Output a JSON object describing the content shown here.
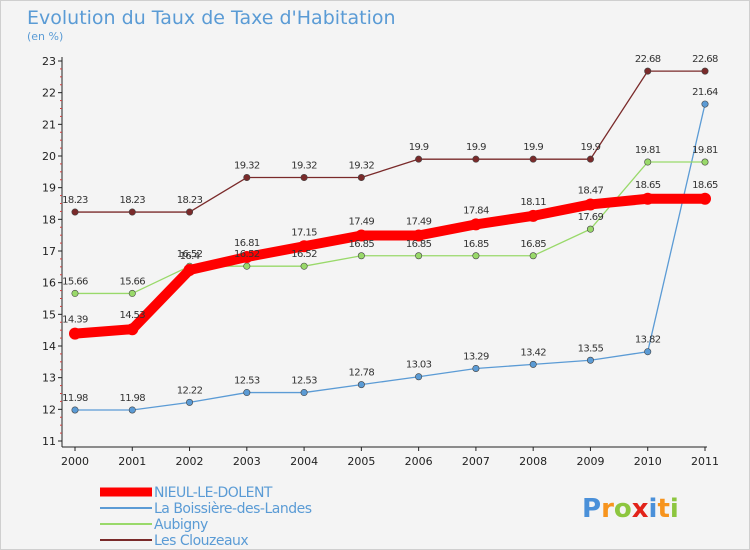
{
  "chart_data": {
    "type": "line",
    "title": "Evolution du Taux de Taxe d'Habitation",
    "subtitle": "(en %)",
    "x": [
      "2000",
      "2001",
      "2002",
      "2003",
      "2004",
      "2005",
      "2006",
      "2007",
      "2008",
      "2009",
      "2010",
      "2011"
    ],
    "ylim": [
      11,
      23
    ],
    "yticks": [
      "11",
      "12",
      "13",
      "14",
      "15",
      "16",
      "17",
      "18",
      "19",
      "20",
      "21",
      "22",
      "23"
    ],
    "grid": false,
    "legend_position": "bottom-left",
    "series": [
      {
        "name": "NIEUL-LE-DOLENT",
        "color": "#ff0000",
        "emphasis": true,
        "values": [
          14.39,
          14.53,
          16.4,
          16.81,
          17.15,
          17.49,
          17.49,
          17.84,
          18.11,
          18.47,
          18.65,
          18.65
        ],
        "labels": [
          "14.39",
          "14.53",
          "16.4",
          "16.81",
          "17.15",
          "17.49",
          "17.49",
          "17.84",
          "18.11",
          "18.47",
          "18.65",
          "18.65"
        ]
      },
      {
        "name": "La Boissière-des-Landes",
        "color": "#5b9bd5",
        "values": [
          11.98,
          11.98,
          12.22,
          12.53,
          12.53,
          12.78,
          13.03,
          13.29,
          13.42,
          13.55,
          13.82,
          21.64
        ],
        "labels": [
          "11.98",
          "11.98",
          "12.22",
          "12.53",
          "12.53",
          "12.78",
          "13.03",
          "13.29",
          "13.42",
          "13.55",
          "13.82",
          "21.64"
        ]
      },
      {
        "name": "Aubigny",
        "color": "#99d96a",
        "values": [
          15.66,
          15.66,
          16.52,
          16.52,
          16.52,
          16.85,
          16.85,
          16.85,
          16.85,
          17.69,
          19.81,
          19.81
        ],
        "labels": [
          "15.66",
          "15.66",
          "16.52",
          "16.52",
          "16.52",
          "16.85",
          "16.85",
          "16.85",
          "16.85",
          "17.69",
          "19.81",
          "19.81"
        ]
      },
      {
        "name": "Les Clouzeaux",
        "color": "#7a2a2a",
        "values": [
          18.23,
          18.23,
          18.23,
          19.32,
          19.32,
          19.32,
          19.9,
          19.9,
          19.9,
          19.9,
          22.68,
          22.68
        ],
        "labels": [
          "18.23",
          "18.23",
          "18.23",
          "19.32",
          "19.32",
          "19.32",
          "19.9",
          "19.9",
          "19.9",
          "19.9",
          "22.68",
          "22.68"
        ]
      }
    ]
  },
  "logo": {
    "letters": [
      "P",
      "r",
      "o",
      "x",
      "i",
      "t",
      "i"
    ],
    "colors": [
      "#4a90d9",
      "#f7941d",
      "#8dc63f",
      "#e2231a",
      "#4a90d9",
      "#f7941d",
      "#8dc63f"
    ]
  }
}
